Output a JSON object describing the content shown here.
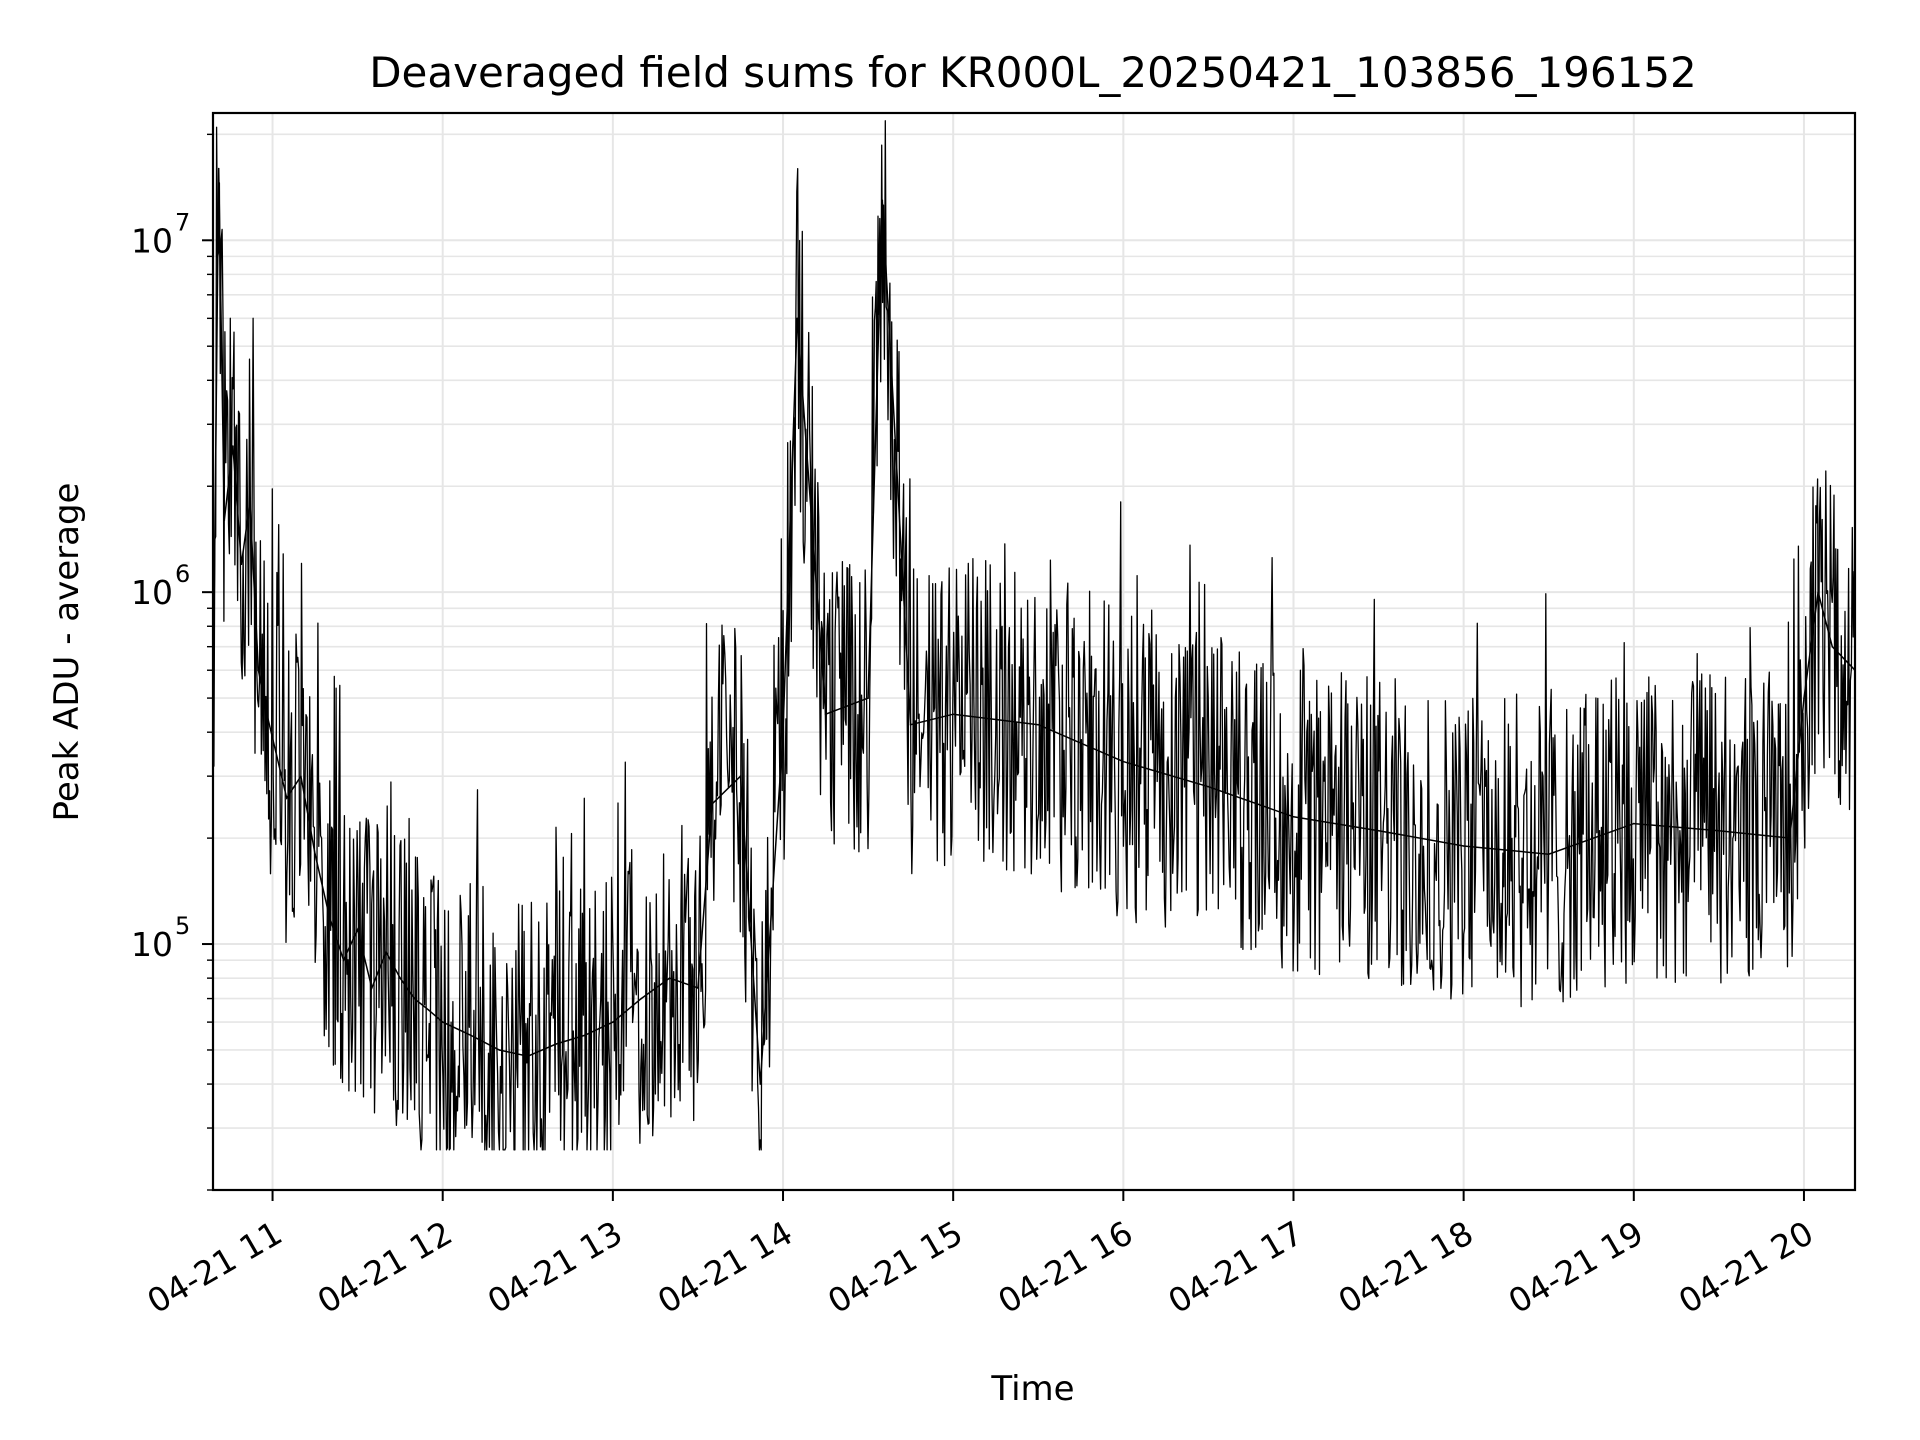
{
  "chart_data": {
    "type": "line",
    "title": "Deaveraged field sums for KR000L_20250421_103856_196152",
    "xlabel": "Time",
    "ylabel": "Peak ADU - average",
    "yscale": "log",
    "ylim": [
      20000,
      23000000
    ],
    "xlim": [
      "2025-04-21 10:39",
      "2025-04-21 20:18"
    ],
    "grid": true,
    "line_color": "#000000",
    "grid_color": "#e6e6e6",
    "x_ticks": [
      {
        "t": "2025-04-21 11:00",
        "label": "04-21 11"
      },
      {
        "t": "2025-04-21 12:00",
        "label": "04-21 12"
      },
      {
        "t": "2025-04-21 13:00",
        "label": "04-21 13"
      },
      {
        "t": "2025-04-21 14:00",
        "label": "04-21 14"
      },
      {
        "t": "2025-04-21 15:00",
        "label": "04-21 15"
      },
      {
        "t": "2025-04-21 16:00",
        "label": "04-21 16"
      },
      {
        "t": "2025-04-21 17:00",
        "label": "04-21 17"
      },
      {
        "t": "2025-04-21 18:00",
        "label": "04-21 18"
      },
      {
        "t": "2025-04-21 19:00",
        "label": "04-21 19"
      },
      {
        "t": "2025-04-21 20:00",
        "label": "04-21 20"
      }
    ],
    "y_ticks": [
      {
        "value": 100000,
        "base": "10",
        "exp": "5"
      },
      {
        "value": 1000000,
        "base": "10",
        "exp": "6"
      },
      {
        "value": 10000000,
        "base": "10",
        "exp": "7"
      }
    ],
    "series": [
      {
        "points": [
          [
            "2025-04-21 10:39",
            450000
          ],
          [
            "2025-04-21 10:41",
            16000000
          ],
          [
            "2025-04-21 10:43",
            1600000
          ],
          [
            "2025-04-21 10:46",
            2600000
          ],
          [
            "2025-04-21 10:49",
            1200000
          ],
          [
            "2025-04-21 10:52",
            1800000
          ],
          [
            "2025-04-21 10:55",
            600000
          ],
          [
            "2025-04-21 10:58",
            450000
          ],
          [
            "2025-04-21 11:05",
            260000
          ],
          [
            "2025-04-21 11:10",
            300000
          ],
          [
            "2025-04-21 11:15",
            180000
          ],
          [
            "2025-04-21 11:20",
            120000
          ],
          [
            "2025-04-21 11:25",
            90000
          ],
          [
            "2025-04-21 11:30",
            110000
          ],
          [
            "2025-04-21 11:35",
            75000
          ],
          [
            "2025-04-21 11:40",
            95000
          ],
          [
            "2025-04-21 11:45",
            80000
          ],
          [
            "2025-04-21 11:50",
            70000
          ],
          [
            "2025-04-21 11:55",
            65000
          ],
          [
            "2025-04-21 12:00",
            60000
          ],
          [
            "2025-04-21 12:10",
            55000
          ],
          [
            "2025-04-21 12:20",
            50000
          ],
          [
            "2025-04-21 12:30",
            48000
          ],
          [
            "2025-04-21 12:40",
            52000
          ],
          [
            "2025-04-21 12:50",
            55000
          ],
          [
            "2025-04-21 13:00",
            60000
          ],
          [
            "2025-04-21 13:10",
            70000
          ],
          [
            "2025-04-21 13:20",
            80000
          ],
          [
            "2025-04-21 13:30",
            75000
          ],
          [
            "2025-04-21 13:35",
            250000
          ],
          [
            "2025-04-21 13:45",
            300000
          ],
          [
            "2025-04-21 13:52",
            40000
          ],
          [
            "2025-04-21 14:00",
            400000
          ],
          [
            "2025-04-21 14:05",
            6000000
          ],
          [
            "2025-04-21 14:15",
            450000
          ],
          [
            "2025-04-21 14:30",
            500000
          ],
          [
            "2025-04-21 14:35",
            13000000
          ],
          [
            "2025-04-21 14:45",
            420000
          ],
          [
            "2025-04-21 15:00",
            450000
          ],
          [
            "2025-04-21 15:30",
            420000
          ],
          [
            "2025-04-21 16:00",
            330000
          ],
          [
            "2025-04-21 16:30",
            280000
          ],
          [
            "2025-04-21 17:00",
            230000
          ],
          [
            "2025-04-21 17:30",
            210000
          ],
          [
            "2025-04-21 18:00",
            190000
          ],
          [
            "2025-04-21 18:30",
            180000
          ],
          [
            "2025-04-21 19:00",
            220000
          ],
          [
            "2025-04-21 19:30",
            210000
          ],
          [
            "2025-04-21 19:55",
            200000
          ],
          [
            "2025-04-21 20:00",
            500000
          ],
          [
            "2025-04-21 20:05",
            1000000
          ],
          [
            "2025-04-21 20:10",
            700000
          ],
          [
            "2025-04-21 20:18",
            600000
          ]
        ]
      }
    ]
  }
}
